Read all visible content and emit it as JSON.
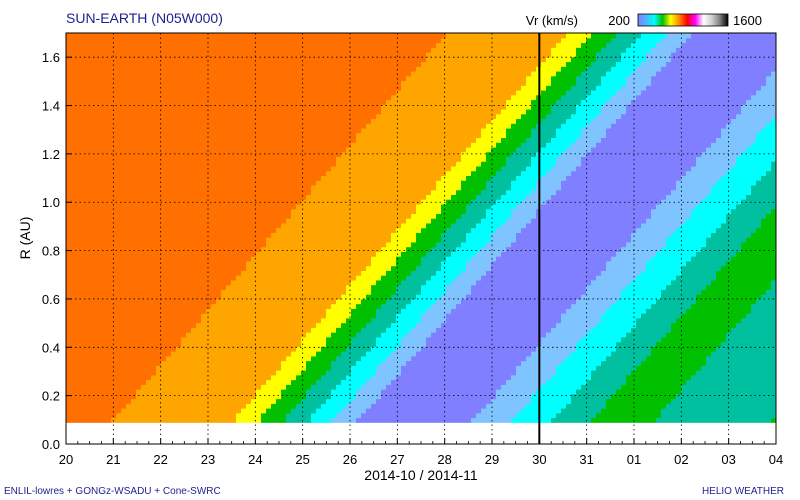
{
  "header": {
    "title": "SUN-EARTH (N05W000)",
    "colorbar_label": "Vr (km/s)",
    "colorbar_min": "200",
    "colorbar_max": "1600",
    "colorbar_colors": [
      "#7f7fff",
      "#4fb3ff",
      "#00ffff",
      "#00c000",
      "#ffff00",
      "#ff8c00",
      "#ff0000",
      "#ff00ff",
      "#ffffff",
      "#d0d0d0",
      "#808080",
      "#000000"
    ]
  },
  "footer": {
    "model": "ENLIL-lowres + GONGz-WSADU + Cone-SWRC",
    "brand": "HELIO WEATHER"
  },
  "chart_data": {
    "type": "heatmap",
    "title": "SUN-EARTH (N05W000)",
    "xlabel": "2014-10 / 2014-11",
    "ylabel": "R (AU)",
    "x_ticks": [
      "20",
      "21",
      "22",
      "23",
      "24",
      "25",
      "26",
      "27",
      "28",
      "29",
      "30",
      "31",
      "01",
      "02",
      "03",
      "04"
    ],
    "y_ticks": [
      "0.0",
      "0.2",
      "0.4",
      "0.6",
      "0.8",
      "1.0",
      "1.2",
      "1.4",
      "1.6"
    ],
    "xlim": [
      0,
      15
    ],
    "ylim": [
      0,
      1.7
    ],
    "inner_boundary_au": 0.09,
    "current_time_marker": "30",
    "grid": true,
    "colorbar": {
      "label": "Vr (km/s)",
      "min": 200,
      "max": 1600
    },
    "velocity_scale_kms": [
      250,
      300,
      350,
      400,
      450,
      500,
      550,
      600
    ],
    "velocity_colors": [
      "#7f7fff",
      "#80c4ff",
      "#00ffff",
      "#00c0a0",
      "#00c000",
      "#ffff00",
      "#ffa500",
      "#ff7000"
    ]
  }
}
